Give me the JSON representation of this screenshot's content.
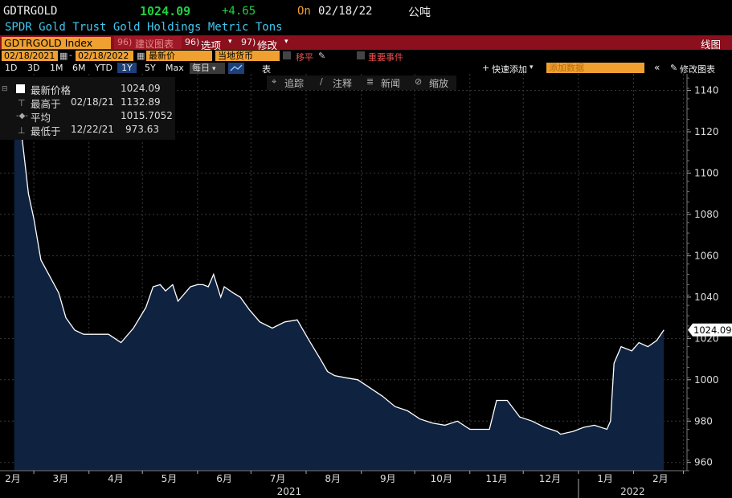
{
  "header": {
    "ticker": "GDTRGOLD",
    "price": "1024.09",
    "change": "+4.65",
    "on_label": "On",
    "date": "02/18/22",
    "unit": "公吨",
    "subtitle": "SPDR Gold Trust Gold Holdings Metric Tons"
  },
  "toolbar": {
    "index_label": "GDTRGOLD Index",
    "suggest_num": "96)",
    "suggest_label": "建议图表",
    "options_num": "96)",
    "options_label": "选项",
    "edit_num": "97)",
    "edit_label": "修改",
    "chart_type": "线图",
    "start_date": "02/18/2021",
    "end_date": "02/18/2022",
    "field": "最新价",
    "currency": "当地货币",
    "move_label": "移平",
    "events_label": "重要事件",
    "periods": [
      "1D",
      "3D",
      "1M",
      "6M",
      "YTD",
      "1Y",
      "5Y",
      "Max"
    ],
    "active_period": "1Y",
    "freq": "每日",
    "table_label": "表",
    "quick_add": "快速添加",
    "add_data": "添加数据",
    "edit_chart": "修改图表"
  },
  "annotations": {
    "track": "追踪",
    "note": "注释",
    "news": "新闻",
    "zoom": "缩放"
  },
  "legend": {
    "last_label": "最新价格",
    "last_value": "1024.09",
    "high_label": "最高于",
    "high_date": "02/18/21",
    "high_value": "1132.89",
    "avg_label": "平均",
    "avg_value": "1015.7052",
    "low_label": "最低于",
    "low_date": "12/22/21",
    "low_value": "973.63"
  },
  "colors": {
    "accent_green": "#20d040",
    "header_red": "#8b0f1c",
    "orange": "#f0a030",
    "subtitle_cyan": "#40c8f0",
    "area_fill": "#0f2340"
  },
  "chart_data": {
    "type": "area",
    "ylim": [
      956,
      1148
    ],
    "yticks": [
      960,
      980,
      1000,
      1020,
      1040,
      1060,
      1080,
      1100,
      1120,
      1140
    ],
    "last_value_label": "1024.09",
    "month_labels": [
      "2月",
      "3月",
      "4月",
      "5月",
      "6月",
      "7月",
      "8月",
      "9月",
      "10月",
      "11月",
      "12月",
      "1月",
      "2月"
    ],
    "year_labels": [
      "2021",
      "2022"
    ],
    "x": [
      "2021-02-18",
      "2021-02-22",
      "2021-02-24",
      "2021-02-26",
      "2021-03-01",
      "2021-03-03",
      "2021-03-05",
      "2021-03-10",
      "2021-03-15",
      "2021-03-19",
      "2021-03-24",
      "2021-03-29",
      "2021-04-01",
      "2021-04-06",
      "2021-04-12",
      "2021-04-19",
      "2021-04-26",
      "2021-05-03",
      "2021-05-07",
      "2021-05-11",
      "2021-05-14",
      "2021-05-18",
      "2021-05-21",
      "2021-05-25",
      "2021-05-28",
      "2021-06-01",
      "2021-06-04",
      "2021-06-07",
      "2021-06-10",
      "2021-06-14",
      "2021-06-16",
      "2021-06-21",
      "2021-06-25",
      "2021-06-30",
      "2021-07-06",
      "2021-07-13",
      "2021-07-20",
      "2021-07-27",
      "2021-08-02",
      "2021-08-09",
      "2021-08-13",
      "2021-08-17",
      "2021-08-23",
      "2021-08-30",
      "2021-09-06",
      "2021-09-13",
      "2021-09-20",
      "2021-09-27",
      "2021-10-04",
      "2021-10-11",
      "2021-10-18",
      "2021-10-25",
      "2021-11-01",
      "2021-11-08",
      "2021-11-12",
      "2021-11-16",
      "2021-11-22",
      "2021-11-29",
      "2021-12-06",
      "2021-12-13",
      "2021-12-20",
      "2021-12-22",
      "2021-12-29",
      "2022-01-04",
      "2022-01-10",
      "2022-01-17",
      "2022-01-19",
      "2022-01-21",
      "2022-01-25",
      "2022-01-31",
      "2022-02-04",
      "2022-02-09",
      "2022-02-14",
      "2022-02-18"
    ],
    "y": [
      1132.89,
      1120,
      1105,
      1090,
      1078,
      1068,
      1058,
      1050,
      1042,
      1030,
      1024,
      1022,
      1022,
      1022,
      1022,
      1018,
      1025,
      1035,
      1045,
      1046,
      1043,
      1046,
      1038,
      1042,
      1045,
      1046,
      1046,
      1045,
      1051,
      1040,
      1045,
      1042,
      1040,
      1034,
      1028,
      1025,
      1028,
      1029,
      1020,
      1010,
      1004,
      1002,
      1001,
      1000,
      996,
      992,
      987,
      985,
      981,
      979,
      978,
      980,
      976,
      976,
      976,
      990,
      990,
      982,
      980,
      977,
      975,
      973.63,
      975,
      977,
      978,
      976,
      980,
      1008,
      1016,
      1014,
      1018,
      1016,
      1019,
      1024.09
    ]
  }
}
